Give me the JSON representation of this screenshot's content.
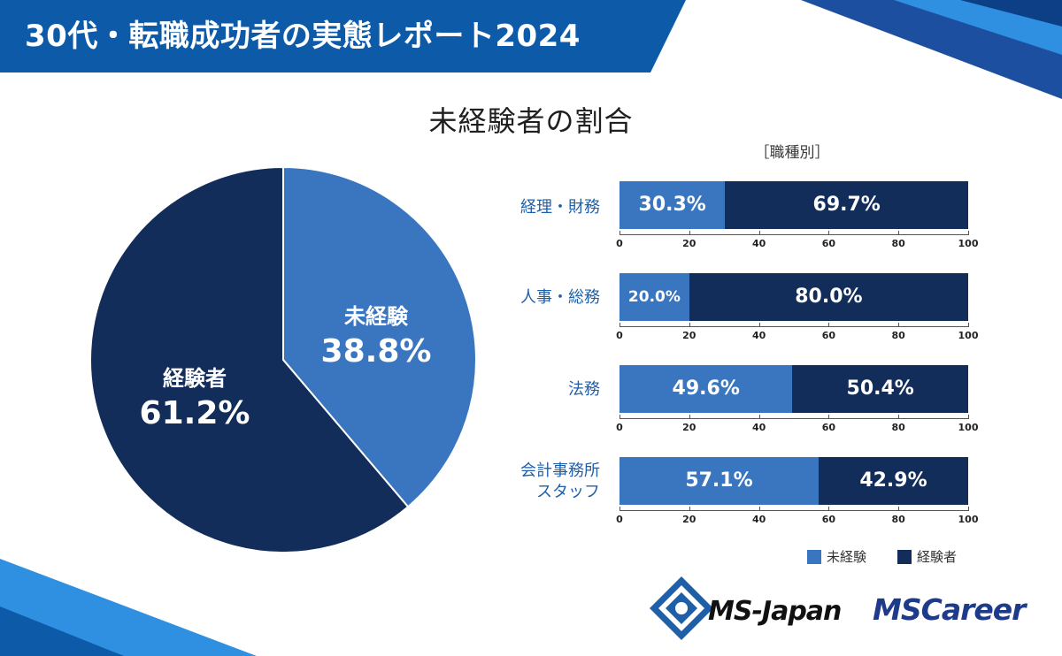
{
  "header": {
    "title": "30代・転職成功者の実態レポート2024"
  },
  "colors": {
    "inexperienced": "#3a76bf",
    "experienced": "#132d5a",
    "header_bg": "#0c5aa8",
    "accent_light": "#2f8fe0"
  },
  "chart_data": [
    {
      "type": "pie",
      "title": "未経験者の割合",
      "slices": [
        {
          "name": "未経験",
          "value": 38.8,
          "label": "38.8%"
        },
        {
          "name": "経験者",
          "value": 61.2,
          "label": "61.2%"
        }
      ]
    },
    {
      "type": "bar",
      "orientation": "horizontal",
      "stacked": true,
      "title": "［職種別］",
      "categories": [
        "経理・財務",
        "人事・総務",
        "法務",
        "会計事務所\nスタッフ"
      ],
      "series": [
        {
          "name": "未経験",
          "values": [
            30.3,
            20.0,
            49.6,
            57.1
          ],
          "labels": [
            "30.3%",
            "20.0%",
            "49.6%",
            "57.1%"
          ]
        },
        {
          "name": "経験者",
          "values": [
            69.7,
            80.0,
            50.4,
            42.9
          ],
          "labels": [
            "69.7%",
            "80.0%",
            "50.4%",
            "42.9%"
          ]
        }
      ],
      "xlim": [
        0,
        100
      ],
      "xticks": [
        "0",
        "20",
        "40",
        "60",
        "80",
        "100"
      ],
      "legend": [
        "未経験",
        "経験者"
      ],
      "legend_position": "bottom-right"
    }
  ],
  "logos": {
    "ms_japan": "MS-Japan",
    "ms_career": "MSCareer"
  }
}
